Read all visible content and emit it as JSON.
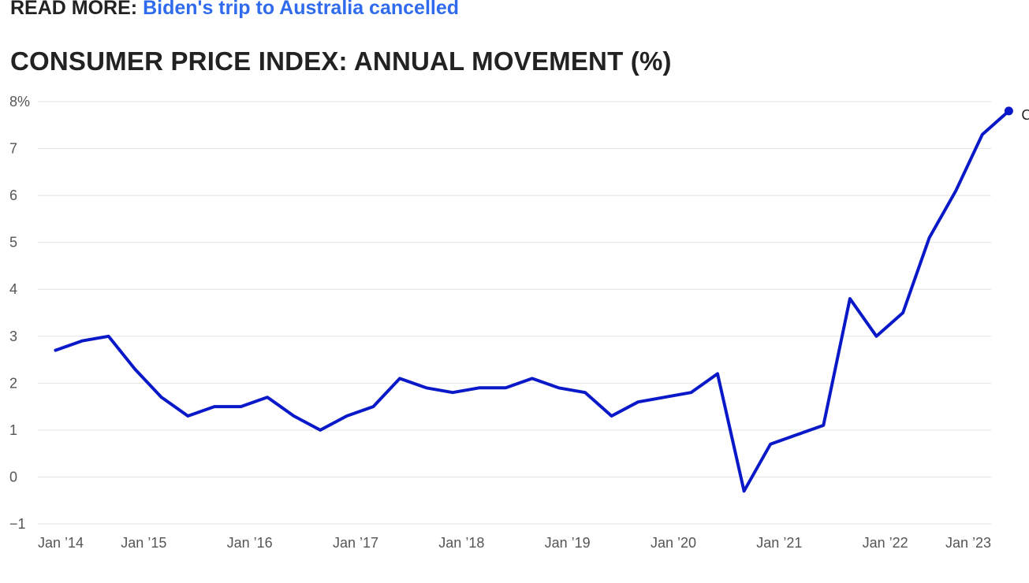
{
  "read_more": {
    "label": "READ MORE:",
    "link_text": "Biden's trip to Australia cancelled"
  },
  "colors": {
    "line": "#0a19c8",
    "grid": "#e2e2e2",
    "tick_text": "#555555",
    "link": "#2f6bec"
  },
  "chart_data": {
    "type": "line",
    "title": "CONSUMER PRICE INDEX: ANNUAL MOVEMENT (%)",
    "xlabel": "",
    "ylabel": "",
    "ylim": [
      -1,
      8
    ],
    "y_ticks": [
      {
        "value": 8,
        "label": "8%"
      },
      {
        "value": 7,
        "label": "7"
      },
      {
        "value": 6,
        "label": "6"
      },
      {
        "value": 5,
        "label": "5"
      },
      {
        "value": 4,
        "label": "4"
      },
      {
        "value": 3,
        "label": "3"
      },
      {
        "value": 2,
        "label": "2"
      },
      {
        "value": 1,
        "label": "1"
      },
      {
        "value": 0,
        "label": "0"
      },
      {
        "value": -1,
        "label": "−1"
      }
    ],
    "x_ticks": [
      {
        "value": "2014-01",
        "label": "Jan ’14"
      },
      {
        "value": "2015-01",
        "label": "Jan ’15"
      },
      {
        "value": "2016-01",
        "label": "Jan ’16"
      },
      {
        "value": "2017-01",
        "label": "Jan ’17"
      },
      {
        "value": "2018-01",
        "label": "Jan ’18"
      },
      {
        "value": "2019-01",
        "label": "Jan ’19"
      },
      {
        "value": "2020-01",
        "label": "Jan ’20"
      },
      {
        "value": "2021-01",
        "label": "Jan ’21"
      },
      {
        "value": "2022-01",
        "label": "Jan ’22"
      },
      {
        "value": "2023-01",
        "label": "Jan ’23"
      }
    ],
    "grid": true,
    "series": [
      {
        "name": "CPI",
        "points": [
          {
            "x": "2014-03",
            "y": 2.7
          },
          {
            "x": "2014-06",
            "y": 2.9
          },
          {
            "x": "2014-09",
            "y": 3.0
          },
          {
            "x": "2014-12",
            "y": 2.3
          },
          {
            "x": "2015-03",
            "y": 1.7
          },
          {
            "x": "2015-06",
            "y": 1.3
          },
          {
            "x": "2015-09",
            "y": 1.5
          },
          {
            "x": "2015-12",
            "y": 1.5
          },
          {
            "x": "2016-03",
            "y": 1.7
          },
          {
            "x": "2016-06",
            "y": 1.3
          },
          {
            "x": "2016-09",
            "y": 1.0
          },
          {
            "x": "2016-12",
            "y": 1.3
          },
          {
            "x": "2017-03",
            "y": 1.5
          },
          {
            "x": "2017-06",
            "y": 2.1
          },
          {
            "x": "2017-09",
            "y": 1.9
          },
          {
            "x": "2017-12",
            "y": 1.8
          },
          {
            "x": "2018-03",
            "y": 1.9
          },
          {
            "x": "2018-06",
            "y": 1.9
          },
          {
            "x": "2018-09",
            "y": 2.1
          },
          {
            "x": "2018-12",
            "y": 1.9
          },
          {
            "x": "2019-03",
            "y": 1.8
          },
          {
            "x": "2019-06",
            "y": 1.3
          },
          {
            "x": "2019-09",
            "y": 1.6
          },
          {
            "x": "2019-12",
            "y": 1.7
          },
          {
            "x": "2020-03",
            "y": 1.8
          },
          {
            "x": "2020-06",
            "y": 2.2
          },
          {
            "x": "2020-09",
            "y": -0.3
          },
          {
            "x": "2020-12",
            "y": 0.7
          },
          {
            "x": "2021-03",
            "y": 0.9
          },
          {
            "x": "2021-06",
            "y": 1.1
          },
          {
            "x": "2021-09",
            "y": 3.8
          },
          {
            "x": "2021-12",
            "y": 3.0
          },
          {
            "x": "2022-03",
            "y": 3.5
          },
          {
            "x": "2022-06",
            "y": 5.1
          },
          {
            "x": "2022-09",
            "y": 6.1
          },
          {
            "x": "2022-12",
            "y": 7.3
          },
          {
            "x": "2023-03",
            "y": 7.8
          }
        ]
      }
    ]
  }
}
